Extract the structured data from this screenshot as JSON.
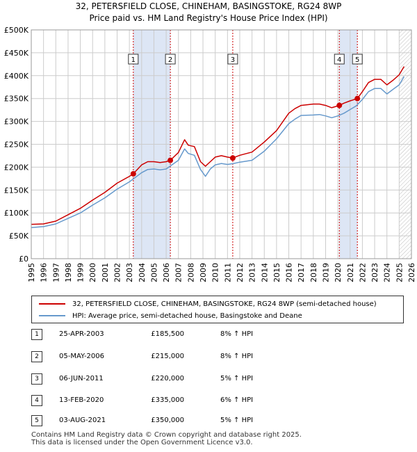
{
  "title_line1": "32, PETERSFIELD CLOSE, CHINEHAM, BASINGSTOKE, RG24 8WP",
  "title_line2": "Price paid vs. HM Land Registry's House Price Index (HPI)",
  "colors": {
    "property": "#cc0000",
    "hpi": "#6699cc",
    "shade": "#dde6f5",
    "grid": "#cccccc"
  },
  "legend": {
    "property_label": "32, PETERSFIELD CLOSE, CHINEHAM, BASINGSTOKE, RG24 8WP (semi-detached house)",
    "hpi_label": "HPI: Average price, semi-detached house, Basingstoke and Deane"
  },
  "transactions": [
    {
      "num": "1",
      "date": "25-APR-2003",
      "price": "£185,500",
      "hpi": "8% ↑ HPI"
    },
    {
      "num": "2",
      "date": "05-MAY-2006",
      "price": "£215,000",
      "hpi": "8% ↑ HPI"
    },
    {
      "num": "3",
      "date": "06-JUN-2011",
      "price": "£220,000",
      "hpi": "5% ↑ HPI"
    },
    {
      "num": "4",
      "date": "13-FEB-2020",
      "price": "£335,000",
      "hpi": "6% ↑ HPI"
    },
    {
      "num": "5",
      "date": "03-AUG-2021",
      "price": "£350,000",
      "hpi": "5% ↑ HPI"
    }
  ],
  "footer_line1": "Contains HM Land Registry data © Crown copyright and database right 2025.",
  "footer_line2": "This data is licensed under the Open Government Licence v3.0.",
  "chart_data": {
    "type": "line",
    "x_range": [
      1995,
      2026
    ],
    "ylim": [
      0,
      500000
    ],
    "y_ticks": [
      0,
      50000,
      100000,
      150000,
      200000,
      250000,
      300000,
      350000,
      400000,
      450000,
      500000
    ],
    "y_tick_labels": [
      "£0",
      "£50K",
      "£100K",
      "£150K",
      "£200K",
      "£250K",
      "£300K",
      "£350K",
      "£400K",
      "£450K",
      "£500K"
    ],
    "x_ticks": [
      "1995",
      "1996",
      "1997",
      "1998",
      "1999",
      "2000",
      "2001",
      "2002",
      "2003",
      "2004",
      "2005",
      "2006",
      "2007",
      "2008",
      "2009",
      "2010",
      "2011",
      "2012",
      "2013",
      "2014",
      "2015",
      "2016",
      "2017",
      "2018",
      "2019",
      "2020",
      "2021",
      "2022",
      "2023",
      "2024",
      "2025",
      "2026"
    ],
    "grid": true,
    "series": [
      {
        "name": "32, PETERSFIELD CLOSE, CHINEHAM, BASINGSTOKE, RG24 8WP (semi-detached house)",
        "x": [
          1995.0,
          1996.0,
          1997.0,
          1998.0,
          1999.0,
          2000.0,
          2001.0,
          2002.0,
          2003.0,
          2003.32,
          2004.0,
          2004.5,
          2005.0,
          2005.5,
          2006.0,
          2006.34,
          2007.0,
          2007.5,
          2007.8,
          2008.3,
          2008.8,
          2009.2,
          2009.6,
          2010.0,
          2010.5,
          2011.0,
          2011.43,
          2012.0,
          2013.0,
          2014.0,
          2015.0,
          2016.0,
          2016.5,
          2017.0,
          2018.0,
          2018.5,
          2019.0,
          2019.5,
          2020.12,
          2020.5,
          2021.0,
          2021.59,
          2022.0,
          2022.5,
          2023.0,
          2023.5,
          2024.0,
          2024.5,
          2025.0,
          2025.4
        ],
        "values": [
          75000,
          76000,
          82000,
          96000,
          110000,
          128000,
          145000,
          165000,
          180000,
          185500,
          205000,
          212000,
          212000,
          210000,
          212000,
          215000,
          232000,
          260000,
          248000,
          245000,
          212000,
          202000,
          212000,
          222000,
          225000,
          222000,
          220000,
          226000,
          233000,
          255000,
          280000,
          318000,
          328000,
          335000,
          338000,
          338000,
          335000,
          330000,
          335000,
          340000,
          345000,
          350000,
          365000,
          385000,
          392000,
          392000,
          380000,
          390000,
          402000,
          420000
        ]
      },
      {
        "name": "HPI: Average price, semi-detached house, Basingstoke and Deane",
        "x": [
          1995.0,
          1996.0,
          1997.0,
          1998.0,
          1999.0,
          2000.0,
          2001.0,
          2002.0,
          2003.0,
          2004.0,
          2004.5,
          2005.0,
          2005.5,
          2006.0,
          2007.0,
          2007.5,
          2007.8,
          2008.3,
          2008.8,
          2009.2,
          2009.6,
          2010.0,
          2010.5,
          2011.0,
          2011.5,
          2012.0,
          2013.0,
          2014.0,
          2015.0,
          2016.0,
          2016.5,
          2017.0,
          2018.0,
          2018.5,
          2019.0,
          2019.5,
          2020.0,
          2020.5,
          2021.0,
          2021.5,
          2022.0,
          2022.5,
          2023.0,
          2023.5,
          2024.0,
          2024.5,
          2025.0,
          2025.4
        ],
        "values": [
          68000,
          70000,
          76000,
          88000,
          100000,
          117000,
          133000,
          152000,
          168000,
          188000,
          195000,
          196000,
          194000,
          196000,
          215000,
          240000,
          230000,
          226000,
          195000,
          180000,
          196000,
          205000,
          208000,
          206000,
          208000,
          211000,
          215000,
          235000,
          262000,
          295000,
          305000,
          313000,
          314000,
          315000,
          312000,
          308000,
          312000,
          318000,
          326000,
          334000,
          348000,
          365000,
          372000,
          372000,
          360000,
          370000,
          380000,
          398000
        ]
      }
    ],
    "markers": [
      {
        "label": "1",
        "x": 2003.32,
        "value": 185500
      },
      {
        "label": "2",
        "x": 2006.34,
        "value": 215000
      },
      {
        "label": "3",
        "x": 2011.43,
        "value": 220000
      },
      {
        "label": "4",
        "x": 2020.12,
        "value": 335000
      },
      {
        "label": "5",
        "x": 2021.59,
        "value": 350000
      }
    ],
    "shaded_ranges": [
      [
        2003.32,
        2006.34
      ],
      [
        2020.12,
        2021.59
      ]
    ],
    "hatched_from": 2025.0
  }
}
